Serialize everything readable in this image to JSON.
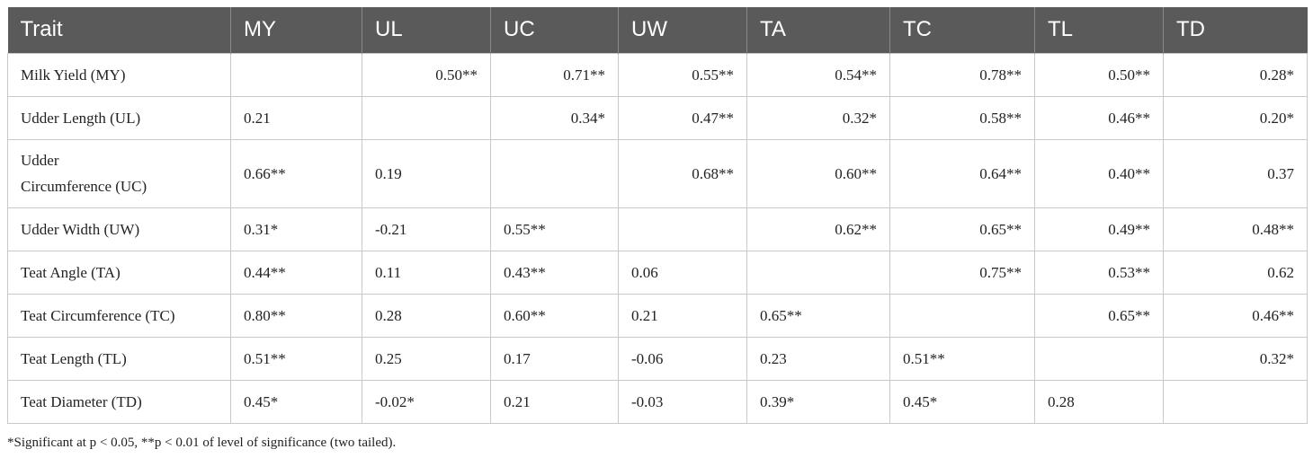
{
  "table": {
    "header": [
      "Trait",
      "MY",
      "UL",
      "UC",
      "UW",
      "TA",
      "TC",
      "TL",
      "TD"
    ],
    "rows": [
      {
        "trait": "Milk Yield (MY)",
        "cells": [
          "",
          "0.50**",
          "0.71**",
          "0.55**",
          "0.54**",
          "0.78**",
          "0.50**",
          "0.28*"
        ]
      },
      {
        "trait": "Udder Length (UL)",
        "cells": [
          "0.21",
          "",
          "0.34*",
          "0.47**",
          "0.32*",
          "0.58**",
          "0.46**",
          "0.20*"
        ]
      },
      {
        "trait": "Udder Circumference (UC)",
        "cells": [
          "0.66**",
          "0.19",
          "",
          "0.68**",
          "0.60**",
          "0.64**",
          "0.40**",
          "0.37"
        ]
      },
      {
        "trait": "Udder Width (UW)",
        "cells": [
          "0.31*",
          "-0.21",
          "0.55**",
          "",
          "0.62**",
          "0.65**",
          "0.49**",
          "0.48**"
        ]
      },
      {
        "trait": "Teat Angle (TA)",
        "cells": [
          "0.44**",
          "0.11",
          "0.43**",
          "0.06",
          "",
          "0.75**",
          "0.53**",
          "0.62"
        ]
      },
      {
        "trait": "Teat Circumference (TC)",
        "cells": [
          "0.80**",
          "0.28",
          "0.60**",
          "0.21",
          "0.65**",
          "",
          "0.65**",
          "0.46**"
        ]
      },
      {
        "trait": "Teat Length (TL)",
        "cells": [
          "0.51**",
          "0.25",
          "0.17",
          "-0.06",
          "0.23",
          "0.51**",
          "",
          "0.32*"
        ]
      },
      {
        "trait": "Teat Diameter (TD)",
        "cells": [
          "0.45*",
          "-0.02*",
          "0.21",
          "-0.03",
          "0.39*",
          "0.45*",
          "0.28",
          ""
        ]
      }
    ]
  },
  "footnote": "*Significant at p < 0.05, **p < 0.01 of level of significance (two tailed)."
}
